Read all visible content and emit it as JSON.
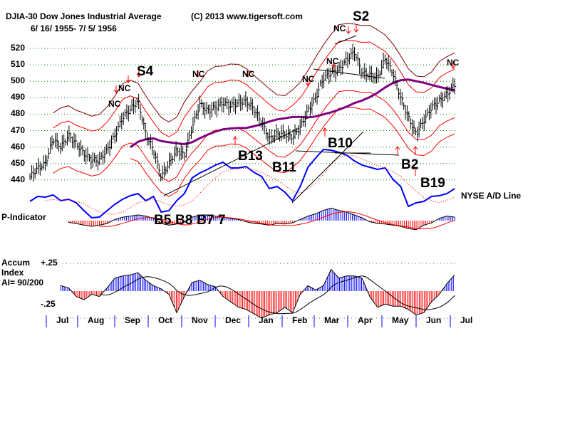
{
  "header": {
    "symbol_title": "DJIA-30  Dow Jones Industrial Average",
    "copyright": "(C) 2013 www.tigersoft.com",
    "date_range": "6/ 16/ 1955- 7/ 5/ 1956"
  },
  "colors": {
    "grid": "#008000",
    "bars": "#000000",
    "ma": "#800080",
    "band_outer": "#800000",
    "band_inner": "#ff0000",
    "ad_line": "#0000ff",
    "positive": "#0000ff",
    "negative": "#ff0000"
  },
  "chart_data": [
    {
      "type": "line",
      "title": "DJIA-30 Dow Jones Industrial Average",
      "x_unit": "week since 6/16/1955",
      "ylim": [
        440,
        520
      ],
      "yticks": [
        440,
        450,
        460,
        470,
        480,
        490,
        500,
        510,
        520
      ],
      "ytick_labels": [
        "440",
        "450",
        "460",
        "470",
        "480",
        "490",
        "500",
        "510",
        "520"
      ],
      "grid": true,
      "ma_weeks": 13,
      "band_pct": [
        3,
        5
      ],
      "closes": [
        442,
        447,
        450,
        465,
        460,
        467,
        462,
        456,
        452,
        452,
        458,
        467,
        478,
        483,
        488,
        468,
        458,
        442,
        450,
        458,
        455,
        472,
        486,
        482,
        484,
        487,
        485,
        487,
        488,
        483,
        475,
        465,
        468,
        468,
        466,
        472,
        482,
        490,
        502,
        505,
        507,
        513,
        518,
        505,
        504,
        502,
        514,
        505,
        490,
        478,
        468,
        476,
        484,
        488,
        492,
        498
      ],
      "signals": [
        {
          "label": "NC",
          "week": 11,
          "kind": "down"
        },
        {
          "label": "NC",
          "week": 13,
          "kind": "down"
        },
        {
          "label": "S4",
          "week": 14,
          "kind": "down"
        },
        {
          "label": "NC",
          "week": 22,
          "kind": "down"
        },
        {
          "label": "NC",
          "week": 28,
          "kind": "down"
        },
        {
          "label": "NC",
          "week": 36,
          "kind": "down"
        },
        {
          "label": "NC",
          "week": 39,
          "kind": "down"
        },
        {
          "label": "NC",
          "week": 41,
          "kind": "down"
        },
        {
          "label": "S2",
          "week": 42,
          "kind": "down"
        },
        {
          "label": "NC",
          "week": 55,
          "kind": "down"
        },
        {
          "label": "B13",
          "week": 28,
          "kind": "up"
        },
        {
          "label": "B11",
          "week": 32,
          "kind": "up"
        },
        {
          "label": "B10",
          "week": 38,
          "kind": "up"
        },
        {
          "label": "B2",
          "week": 50,
          "kind": "up"
        },
        {
          "label": "B19",
          "week": 52,
          "kind": "up"
        },
        {
          "label": "B5",
          "week": 17,
          "kind": "up"
        },
        {
          "label": "B8",
          "week": 17,
          "kind": "up"
        },
        {
          "label": "B7",
          "week": 18,
          "kind": "up"
        },
        {
          "label": "7",
          "week": 19,
          "kind": "up"
        }
      ]
    },
    {
      "type": "line",
      "title": "NYSE A/D Line",
      "values": [
        27,
        34,
        33,
        36,
        28,
        30,
        25,
        14,
        4,
        5,
        14,
        23,
        30,
        35,
        38,
        28,
        34,
        12,
        14,
        28,
        38,
        60,
        67,
        72,
        78,
        82,
        74,
        74,
        76,
        68,
        62,
        45,
        48,
        40,
        28,
        48,
        75,
        88,
        100,
        99,
        96,
        92,
        84,
        78,
        75,
        72,
        74,
        58,
        48,
        20,
        25,
        27,
        34,
        35,
        38,
        45
      ]
    },
    {
      "type": "bar",
      "title": "P-Indicator",
      "start_week": 5,
      "values": [
        -3,
        -5,
        -8,
        -10,
        -8,
        -5,
        2,
        6,
        8,
        10,
        8,
        4,
        -5,
        -8,
        -6,
        -3,
        6,
        10,
        10,
        8,
        6,
        4,
        2,
        -2,
        -5,
        -6,
        -8,
        -5,
        -6,
        -4,
        2,
        8,
        12,
        18,
        22,
        18,
        15,
        10,
        5,
        -2,
        -5,
        -6,
        -8,
        -10,
        -14,
        -16,
        -8,
        -4,
        4,
        8,
        6
      ]
    },
    {
      "type": "bar",
      "title": "Accum Index",
      "subtitle": "AI= 90/200",
      "ylim": [
        -0.25,
        0.25
      ],
      "ytick_labels": [
        "+.25",
        "-.25"
      ],
      "start_week": 4,
      "values": [
        0.05,
        0.03,
        -0.05,
        -0.08,
        -0.03,
        -0.05,
        0.03,
        0.12,
        0.14,
        0.15,
        0.17,
        0.1,
        0.05,
        0.02,
        -0.03,
        -0.2,
        -0.05,
        0.08,
        0.1,
        0.06,
        0.04,
        -0.05,
        -0.1,
        -0.15,
        -0.17,
        -0.21,
        -0.25,
        -0.22,
        -0.2,
        -0.15,
        -0.2,
        -0.03,
        0.05,
        0.01,
        0.05,
        0.2,
        0.12,
        0.14,
        0.14,
        0.12,
        -0.05,
        -0.15,
        -0.12,
        -0.14,
        -0.14,
        -0.17,
        -0.22,
        -0.2,
        -0.1,
        -0.03,
        0.07,
        0.15
      ]
    }
  ],
  "labels": {
    "ad_line": "NYSE A/D Line",
    "p_indicator": "P-Indicator",
    "accum_1": "Accum",
    "accum_2": "Index",
    "accum_3": "AI= 90/200",
    "ai_plus": "+.25",
    "ai_minus": "-.25"
  },
  "months": [
    "Jul",
    "Aug",
    "Sep",
    "Oct",
    "Nov",
    "Dec",
    "Jan",
    "Feb",
    "Mar",
    "Apr",
    "May",
    "Jun",
    "Jul"
  ]
}
